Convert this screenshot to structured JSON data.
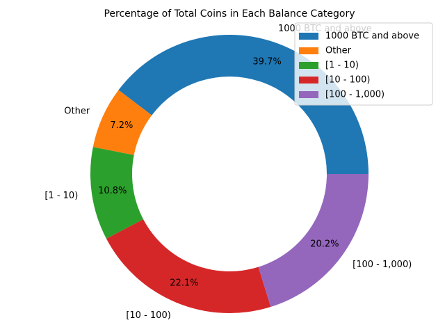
{
  "chart_data": {
    "type": "donut",
    "title": "Percentage of Total Coins in Each Balance Category",
    "categories": [
      "1000 BTC and above",
      "Other",
      "[1 - 10)",
      "[10 - 100)",
      "[100 - 1,000)"
    ],
    "values": [
      39.7,
      7.2,
      10.8,
      22.1,
      20.2
    ],
    "value_labels": [
      "39.7%",
      "7.2%",
      "10.8%",
      "22.1%",
      "20.2%"
    ],
    "colors": [
      "#1f77b4",
      "#ff7f0e",
      "#2ca02c",
      "#d62728",
      "#9467bd"
    ],
    "legend": "upper right"
  }
}
